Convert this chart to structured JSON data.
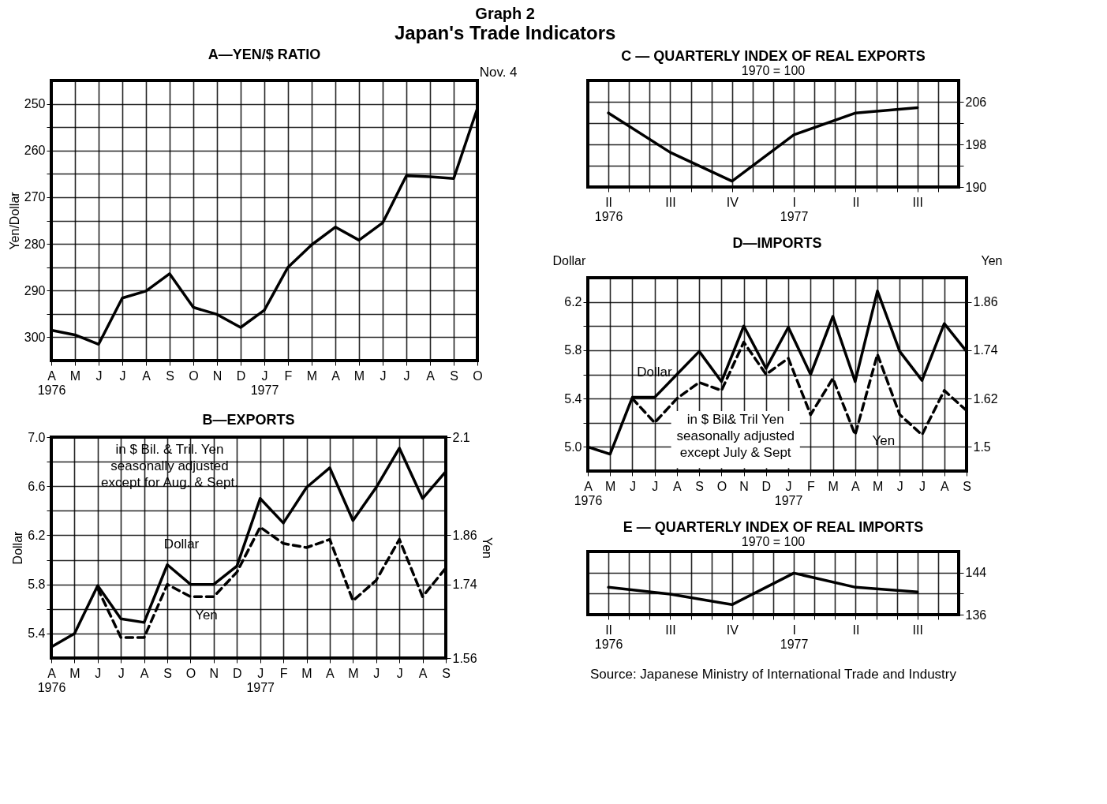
{
  "chart_data": [
    {
      "type": "line",
      "title": "A—YEN/$ RATIO",
      "ylabel": "Yen/Dollar",
      "categories": [
        "A\n1976",
        "M",
        "J",
        "J",
        "A",
        "S",
        "O",
        "N",
        "D",
        "J\n1977",
        "F",
        "M",
        "A",
        "M",
        "J",
        "J",
        "A",
        "S",
        "O"
      ],
      "series": [
        {
          "color": "#000000",
          "line_style": "solid",
          "values": [
            298.5,
            299.5,
            301.5,
            291.6,
            290.1,
            286.4,
            293.6,
            295.1,
            297.9,
            294.2,
            285.0,
            280.2,
            276.4,
            279.2,
            275.5,
            265.4,
            265.6,
            266.0,
            251.0
          ]
        }
      ],
      "ylim": [
        305,
        245
      ],
      "yticks": [
        250,
        {
          "value": 255,
          "label": null
        },
        260,
        {
          "value": 265,
          "label": null
        },
        270,
        {
          "value": 275,
          "label": null
        },
        280,
        {
          "value": 285,
          "label": null
        },
        290,
        {
          "value": 295,
          "label": null
        },
        300
      ],
      "grid": true,
      "annotations": [
        "Graph 2",
        "Japan's Trade Indicators",
        "Nov. 4"
      ]
    },
    {
      "type": "line",
      "title": "B—EXPORTS",
      "ylabel": "Dollar",
      "y2label": "Yen",
      "categories": [
        "A\n1976",
        "M",
        "J",
        "J",
        "A",
        "S",
        "O",
        "N",
        "D",
        "J\n1977",
        "F",
        "M",
        "A",
        "M",
        "J",
        "J",
        "A",
        "S"
      ],
      "series": [
        {
          "name": "Dollar",
          "color": "#000000",
          "line_style": "solid",
          "values": [
            5.29,
            5.4,
            5.79,
            5.52,
            5.49,
            5.96,
            5.8,
            5.8,
            5.95,
            6.5,
            6.3,
            6.59,
            6.75,
            6.32,
            6.59,
            6.91,
            6.5,
            6.72
          ]
        },
        {
          "name": "Yen",
          "color": "#000000",
          "line_style": "dashed",
          "axis": "y2",
          "values": [
            null,
            null,
            1.73,
            1.61,
            1.61,
            1.74,
            1.71,
            1.71,
            1.77,
            1.88,
            1.84,
            1.83,
            1.85,
            1.7,
            1.75,
            1.85,
            1.71,
            1.78
          ]
        }
      ],
      "ylim": [
        5.2,
        7.0
      ],
      "yticks": [
        {
          "value": 7,
          "label": "7.0"
        },
        {
          "value": 6.8,
          "label": null
        },
        6.6,
        {
          "value": 6.4,
          "label": null
        },
        6.2,
        {
          "value": 6.0,
          "label": null
        },
        5.8,
        {
          "value": 5.6,
          "label": null
        },
        5.4
      ],
      "y2lim": [
        1.56,
        2.1
      ],
      "y2ticks": [
        2.1,
        1.86,
        1.74,
        1.56
      ],
      "grid": true,
      "annotations": [
        "in $ Bil. & Tril. Yen\nseasonally adjusted\nexcept for Aug. & Sept."
      ]
    },
    {
      "type": "line",
      "title": "C — QUARTERLY INDEX OF REAL EXPORTS",
      "subtitle": "1970 = 100",
      "categories": [
        "II\n1976",
        "III",
        "IV",
        "I\n1977",
        "II",
        "III"
      ],
      "series": [
        {
          "color": "#000000",
          "line_style": "solid",
          "values": [
            203.9,
            196.5,
            191.1,
            199.8,
            203.9,
            204.9
          ]
        }
      ],
      "ylim": [
        190,
        210
      ],
      "yticks": [
        206,
        {
          "value": 202,
          "label": null
        },
        198,
        {
          "value": 194,
          "label": null
        },
        190
      ],
      "grid": true
    },
    {
      "type": "line",
      "title": "D—IMPORTS",
      "ylabel": "Dollar",
      "y2label": "Yen",
      "categories": [
        "A\n1976",
        "M",
        "J",
        "J",
        "A",
        "S",
        "O",
        "N",
        "D",
        "J\n1977",
        "F",
        "M",
        "A",
        "M",
        "J",
        "J",
        "A",
        "S"
      ],
      "series": [
        {
          "name": "Dollar",
          "color": "#000000",
          "line_style": "solid",
          "values": [
            5.0,
            4.94,
            5.41,
            5.41,
            5.6,
            5.79,
            5.54,
            6.0,
            5.65,
            5.99,
            5.6,
            6.08,
            5.54,
            6.29,
            5.79,
            5.55,
            6.02,
            5.79
          ]
        },
        {
          "name": "Yen",
          "color": "#000000",
          "line_style": "dashed",
          "axis": "y2",
          "values": [
            null,
            null,
            1.62,
            1.56,
            1.62,
            1.66,
            1.64,
            1.76,
            1.68,
            1.72,
            1.58,
            1.67,
            1.53,
            1.73,
            1.58,
            1.53,
            1.64,
            1.59
          ]
        }
      ],
      "ylim": [
        4.8,
        6.4
      ],
      "yticks": [
        6.2,
        {
          "value": 6.0,
          "label": null
        },
        5.8,
        {
          "value": 5.6,
          "label": null
        },
        5.4,
        {
          "value": 5.2,
          "label": null
        },
        {
          "value": 5,
          "label": "5.0"
        }
      ],
      "y2lim": [
        1.44,
        1.92
      ],
      "y2ticks": [
        1.86,
        1.74,
        1.62,
        1.5
      ],
      "grid": true,
      "annotations": [
        "in $ Bil& Tril Yen\nseasonally adjusted\nexcept July & Sept"
      ]
    },
    {
      "type": "line",
      "title": "E — QUARTERLY INDEX OF REAL IMPORTS",
      "subtitle": "1970 = 100",
      "categories": [
        "II\n1976",
        "III",
        "IV",
        "I\n1977",
        "II",
        "III"
      ],
      "series": [
        {
          "color": "#000000",
          "line_style": "solid",
          "values": [
            141.2,
            139.9,
            137.9,
            143.9,
            141.2,
            140.3
          ]
        }
      ],
      "ylim": [
        136,
        148
      ],
      "yticks": [
        144,
        {
          "value": 140,
          "label": null
        },
        136
      ],
      "grid": true,
      "annotations": [
        "Source: Japanese Ministry of International Trade and Industry"
      ]
    }
  ]
}
